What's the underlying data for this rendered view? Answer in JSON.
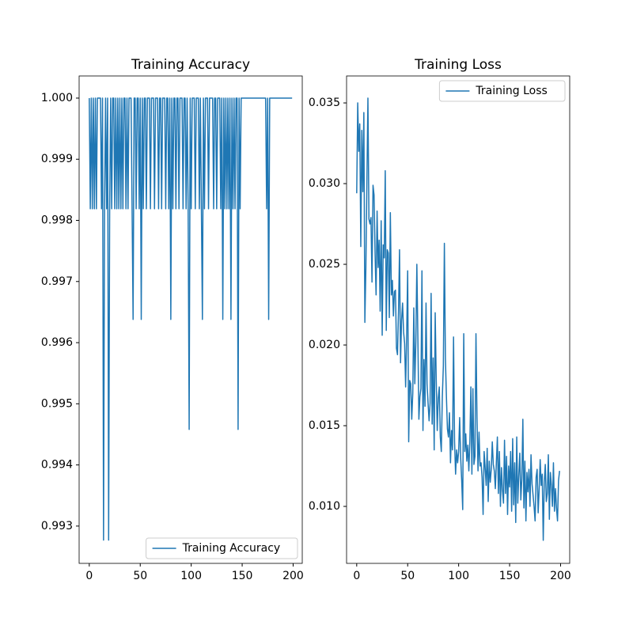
{
  "chart_data": [
    {
      "type": "line",
      "title": "Training Accuracy",
      "legend": "lower right",
      "xlim": [
        -9.95,
        208.95
      ],
      "xticks": [
        0,
        50,
        100,
        150,
        200
      ],
      "ylim": [
        0.99239,
        1.000362
      ],
      "yticks": [
        0.993,
        0.994,
        0.995,
        0.996,
        0.997,
        0.998,
        0.999,
        {
          "value": 1,
          "label": "1.000"
        }
      ],
      "x": [
        0,
        1,
        2,
        3,
        4,
        5,
        6,
        7,
        8,
        9,
        10,
        11,
        12,
        13,
        14,
        15,
        16,
        17,
        18,
        19,
        20,
        21,
        22,
        23,
        24,
        25,
        26,
        27,
        28,
        29,
        30,
        31,
        32,
        33,
        34,
        35,
        36,
        37,
        38,
        39,
        40,
        41,
        42,
        43,
        44,
        45,
        46,
        47,
        48,
        49,
        50,
        51,
        52,
        53,
        54,
        55,
        56,
        57,
        58,
        59,
        60,
        61,
        62,
        63,
        64,
        65,
        66,
        67,
        68,
        69,
        70,
        71,
        72,
        73,
        74,
        75,
        76,
        77,
        78,
        79,
        80,
        81,
        82,
        83,
        84,
        85,
        86,
        87,
        88,
        89,
        90,
        91,
        92,
        93,
        94,
        95,
        96,
        97,
        98,
        99,
        100,
        101,
        102,
        103,
        104,
        105,
        106,
        107,
        108,
        109,
        110,
        111,
        112,
        113,
        114,
        115,
        116,
        117,
        118,
        119,
        120,
        121,
        122,
        123,
        124,
        125,
        126,
        127,
        128,
        129,
        130,
        131,
        132,
        133,
        134,
        135,
        136,
        137,
        138,
        139,
        140,
        141,
        142,
        143,
        144,
        145,
        146,
        147,
        148,
        149,
        150,
        151,
        152,
        153,
        154,
        155,
        156,
        157,
        158,
        159,
        160,
        161,
        162,
        163,
        164,
        165,
        166,
        167,
        168,
        169,
        170,
        171,
        172,
        173,
        174,
        175,
        176,
        177,
        178,
        179,
        180,
        181,
        182,
        183,
        184,
        185,
        186,
        187,
        188,
        189,
        190,
        191,
        192,
        193,
        194,
        195,
        196,
        197,
        198,
        199
      ],
      "series": [
        {
          "name": "Training Accuracy",
          "color": "#1f77b4",
          "values": [
            1,
            0.99819,
            1,
            0.99819,
            1,
            0.99819,
            1,
            0.99819,
            1,
            1,
            1,
            1,
            0.99819,
            1,
            0.99277,
            0.99819,
            1,
            0.99819,
            1,
            0.99277,
            0.99819,
            1,
            0.99819,
            1,
            1,
            0.99819,
            1,
            0.99819,
            1,
            0.99819,
            1,
            0.99819,
            1,
            0.99819,
            1,
            1,
            0.99819,
            1,
            0.99819,
            1,
            1,
            1,
            0.99819,
            0.99638,
            1,
            1,
            0.99819,
            1,
            1,
            0.99819,
            1,
            0.99638,
            1,
            0.99819,
            1,
            1,
            0.99819,
            1,
            1,
            1,
            0.99819,
            1,
            1,
            1,
            0.99819,
            1,
            1,
            1,
            0.99819,
            1,
            1,
            0.99819,
            1,
            1,
            1,
            0.99819,
            1,
            1,
            0.99819,
            1,
            0.99638,
            1,
            0.99819,
            1,
            1,
            0.99819,
            1,
            1,
            0.99819,
            1,
            1,
            1,
            0.99819,
            1,
            1,
            0.99819,
            1,
            0.99819,
            0.99458,
            1,
            0.99819,
            1,
            1,
            1,
            0.99819,
            1,
            1,
            1,
            0.99819,
            1,
            0.99819,
            0.99638,
            1,
            0.99819,
            1,
            1,
            1,
            0.99819,
            1,
            1,
            1,
            1,
            0.99819,
            1,
            1,
            0.99819,
            1,
            1,
            1,
            0.99819,
            1,
            0.99638,
            1,
            0.99819,
            1,
            0.99819,
            1,
            0.99819,
            1,
            0.99638,
            1,
            0.99819,
            1,
            0.99819,
            1,
            1,
            0.99458,
            1,
            0.99819,
            1,
            1,
            1,
            1,
            1,
            1,
            1,
            1,
            1,
            1,
            1,
            1,
            1,
            1,
            1,
            1,
            1,
            1,
            1,
            1,
            1,
            1,
            1,
            1,
            1,
            0.99819,
            1,
            0.99638,
            1,
            1,
            1,
            1,
            1,
            1,
            1,
            1,
            1,
            1,
            1,
            1,
            1,
            1,
            1,
            1,
            1,
            1,
            1,
            1,
            1,
            1,
            1
          ]
        }
      ]
    },
    {
      "type": "line",
      "title": "Training Loss",
      "legend": "upper right",
      "xlim": [
        -9.95,
        208.95
      ],
      "xticks": [
        0,
        50,
        100,
        150,
        200
      ],
      "ylim": [
        0.00647,
        0.03667
      ],
      "yticks": [
        {
          "value": 0.01,
          "label": "0.010"
        },
        0.015,
        {
          "value": 0.02,
          "label": "0.020"
        },
        0.025,
        {
          "value": 0.03,
          "label": "0.030"
        },
        0.035
      ],
      "x": [
        0,
        1,
        2,
        3,
        4,
        5,
        6,
        7,
        8,
        9,
        10,
        11,
        12,
        13,
        14,
        15,
        16,
        17,
        18,
        19,
        20,
        21,
        22,
        23,
        24,
        25,
        26,
        27,
        28,
        29,
        30,
        31,
        32,
        33,
        34,
        35,
        36,
        37,
        38,
        39,
        40,
        41,
        42,
        43,
        44,
        45,
        46,
        47,
        48,
        49,
        50,
        51,
        52,
        53,
        54,
        55,
        56,
        57,
        58,
        59,
        60,
        61,
        62,
        63,
        64,
        65,
        66,
        67,
        68,
        69,
        70,
        71,
        72,
        73,
        74,
        75,
        76,
        77,
        78,
        79,
        80,
        81,
        82,
        83,
        84,
        85,
        86,
        87,
        88,
        89,
        90,
        91,
        92,
        93,
        94,
        95,
        96,
        97,
        98,
        99,
        100,
        101,
        102,
        103,
        104,
        105,
        106,
        107,
        108,
        109,
        110,
        111,
        112,
        113,
        114,
        115,
        116,
        117,
        118,
        119,
        120,
        121,
        122,
        123,
        124,
        125,
        126,
        127,
        128,
        129,
        130,
        131,
        132,
        133,
        134,
        135,
        136,
        137,
        138,
        139,
        140,
        141,
        142,
        143,
        144,
        145,
        146,
        147,
        148,
        149,
        150,
        151,
        152,
        153,
        154,
        155,
        156,
        157,
        158,
        159,
        160,
        161,
        162,
        163,
        164,
        165,
        166,
        167,
        168,
        169,
        170,
        171,
        172,
        173,
        174,
        175,
        176,
        177,
        178,
        179,
        180,
        181,
        182,
        183,
        184,
        185,
        186,
        187,
        188,
        189,
        190,
        191,
        192,
        193,
        194,
        195,
        196,
        197,
        198,
        199
      ],
      "series": [
        {
          "name": "Training Loss",
          "color": "#1f77b4",
          "values": [
            0.0294,
            0.035,
            0.032,
            0.0337,
            0.0261,
            0.0333,
            0.0295,
            0.0344,
            0.0214,
            0.0248,
            0.0301,
            0.0353,
            0.0278,
            0.0275,
            0.0279,
            0.0239,
            0.0299,
            0.0293,
            0.0257,
            0.0231,
            0.0283,
            0.0248,
            0.0265,
            0.0221,
            0.0277,
            0.0206,
            0.0262,
            0.0254,
            0.0308,
            0.0209,
            0.0259,
            0.0257,
            0.0217,
            0.0282,
            0.0231,
            0.024,
            0.0218,
            0.0233,
            0.0234,
            0.0198,
            0.0194,
            0.0221,
            0.0259,
            0.0189,
            0.0215,
            0.0226,
            0.0208,
            0.0201,
            0.0174,
            0.0206,
            0.0246,
            0.014,
            0.0178,
            0.0176,
            0.0154,
            0.017,
            0.0223,
            0.0176,
            0.0202,
            0.025,
            0.0205,
            0.0154,
            0.0168,
            0.0173,
            0.0246,
            0.0147,
            0.0191,
            0.0162,
            0.0226,
            0.0176,
            0.0164,
            0.0153,
            0.0164,
            0.0232,
            0.0151,
            0.0192,
            0.0135,
            0.022,
            0.0179,
            0.0147,
            0.0167,
            0.0174,
            0.0143,
            0.0134,
            0.0168,
            0.0187,
            0.0263,
            0.0192,
            0.0168,
            0.0148,
            0.0143,
            0.0158,
            0.0127,
            0.0147,
            0.0135,
            0.0205,
            0.014,
            0.012,
            0.0135,
            0.0127,
            0.0134,
            0.0155,
            0.013,
            0.0116,
            0.0098,
            0.0207,
            0.0134,
            0.0145,
            0.0128,
            0.0138,
            0.0122,
            0.014,
            0.0174,
            0.012,
            0.0173,
            0.0126,
            0.0131,
            0.0207,
            0.0155,
            0.0122,
            0.0146,
            0.0125,
            0.0127,
            0.0118,
            0.0095,
            0.0134,
            0.0124,
            0.0113,
            0.0136,
            0.0103,
            0.0128,
            0.0115,
            0.0123,
            0.014,
            0.0126,
            0.0122,
            0.0111,
            0.0127,
            0.0143,
            0.0108,
            0.0134,
            0.01,
            0.0124,
            0.011,
            0.0102,
            0.0141,
            0.0108,
            0.0131,
            0.0095,
            0.0125,
            0.0112,
            0.0134,
            0.0097,
            0.0142,
            0.0101,
            0.0127,
            0.009,
            0.0143,
            0.0102,
            0.0119,
            0.0133,
            0.0104,
            0.0117,
            0.0154,
            0.0099,
            0.0128,
            0.0091,
            0.0121,
            0.0109,
            0.0123,
            0.01,
            0.0132,
            0.0114,
            0.0107,
            0.01,
            0.0091,
            0.0118,
            0.0123,
            0.0096,
            0.0111,
            0.0129,
            0.0113,
            0.012,
            0.0079,
            0.0115,
            0.0126,
            0.0103,
            0.0108,
            0.0132,
            0.0092,
            0.0121,
            0.0113,
            0.01,
            0.0127,
            0.0097,
            0.0111,
            0.0099,
            0.0091,
            0.0116,
            0.0122
          ]
        }
      ]
    }
  ]
}
